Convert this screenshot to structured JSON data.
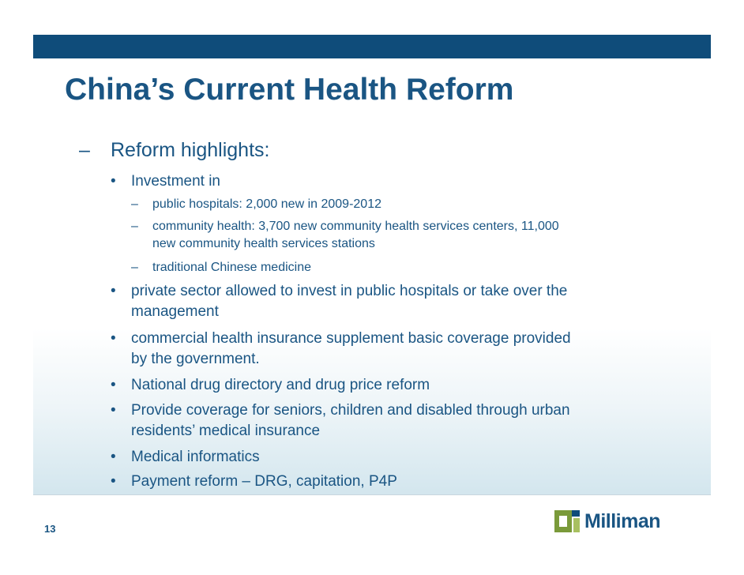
{
  "slide": {
    "title": "China’s Current Health Reform",
    "page_number": "13",
    "logo_text": "Milliman"
  },
  "content": {
    "heading": {
      "marker": "–",
      "text": "Reform highlights:"
    },
    "bullets": [
      {
        "marker": "•",
        "text": "Investment in"
      },
      {
        "marker": "–",
        "text": "public hospitals: 2,000 new in 2009-2012"
      },
      {
        "marker": "–",
        "text": "community health: 3,700 new community health services centers, 11,000",
        "text_cont": "new community health services stations"
      },
      {
        "marker": "–",
        "text": "traditional Chinese medicine"
      },
      {
        "marker": "•",
        "text": "private sector allowed to invest in public hospitals or take over the",
        "text_cont": "management"
      },
      {
        "marker": "•",
        "text": "commercial health insurance supplement basic coverage provided",
        "text_cont": "by the government."
      },
      {
        "marker": "•",
        "text": "National drug directory and drug price reform"
      },
      {
        "marker": "•",
        "text": "Provide coverage for seniors, children and disabled through urban",
        "text_cont": "residents’ medical insurance"
      },
      {
        "marker": "•",
        "text": "Medical informatics"
      },
      {
        "marker": "•",
        "text": "Payment reform – DRG, capitation, P4P"
      }
    ]
  },
  "colors": {
    "accent": "#0f4c7a",
    "text": "#1a5583",
    "logo_green": "#7a9a3a"
  },
  "icons": {
    "logo": "milliman-logo-icon"
  }
}
